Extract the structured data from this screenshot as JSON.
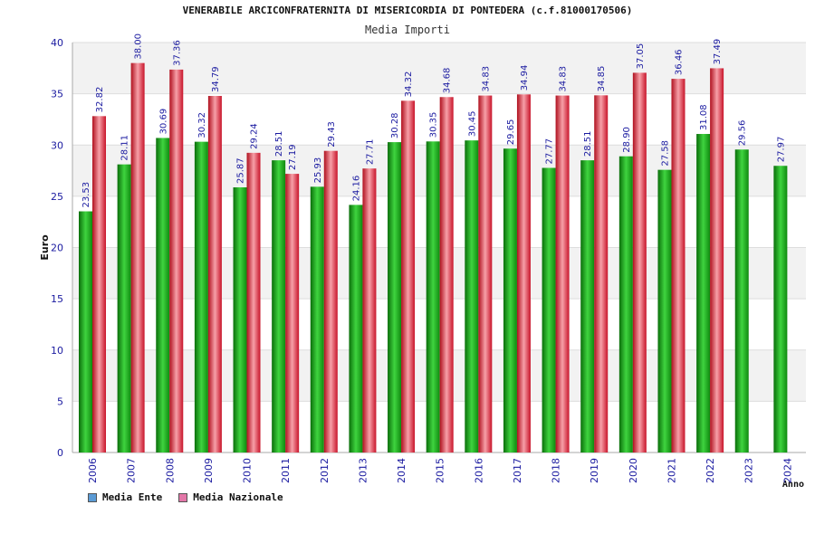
{
  "chart_data": {
    "type": "bar",
    "title": "VENERABILE ARCICONFRATERNITA DI MISERICORDIA DI PONTEDERA (c.f.81000170506)",
    "subtitle": "Media Importi",
    "xlabel": "Anno",
    "ylabel": "Euro",
    "ylim": [
      0,
      40
    ],
    "yticks": [
      0,
      5,
      10,
      15,
      20,
      25,
      30,
      35,
      40
    ],
    "categories": [
      "2006",
      "2007",
      "2008",
      "2009",
      "2010",
      "2011",
      "2012",
      "2013",
      "2014",
      "2015",
      "2016",
      "2017",
      "2018",
      "2019",
      "2020",
      "2021",
      "2022",
      "2023",
      "2024"
    ],
    "series": [
      {
        "name": "Media Ente",
        "color": "#22aa22",
        "legend_color": "#5b9bd5",
        "values": [
          23.53,
          28.11,
          30.69,
          30.32,
          25.87,
          28.51,
          25.93,
          24.16,
          30.28,
          30.35,
          30.45,
          29.65,
          27.77,
          28.51,
          28.9,
          27.58,
          31.08,
          29.56,
          27.97
        ],
        "labels": [
          "23.53",
          "28.11",
          "30.69",
          "30.32",
          "25.87",
          "28.51",
          "25.93",
          "24.16",
          "30.28",
          "30.35",
          "30.45",
          "29.65",
          "27.77",
          "28.51",
          "28.90",
          "27.58",
          "31.08",
          "29.56",
          "27.97"
        ]
      },
      {
        "name": "Media Nazionale",
        "color": "#dd2233",
        "legend_color": "#e377a8",
        "values": [
          32.82,
          38.0,
          37.36,
          34.79,
          29.24,
          27.19,
          29.43,
          27.71,
          34.32,
          34.68,
          34.83,
          34.94,
          34.83,
          34.85,
          37.05,
          36.46,
          37.49,
          null,
          null
        ],
        "labels": [
          "32.82",
          "38.00",
          "37.36",
          "34.79",
          "29.24",
          "27.19",
          "29.43",
          "27.71",
          "34.32",
          "34.68",
          "34.83",
          "34.94",
          "34.83",
          "34.85",
          "37.05",
          "36.46",
          "37.49",
          null,
          null
        ]
      }
    ],
    "grid": true,
    "legend_position": "bottom-left"
  }
}
